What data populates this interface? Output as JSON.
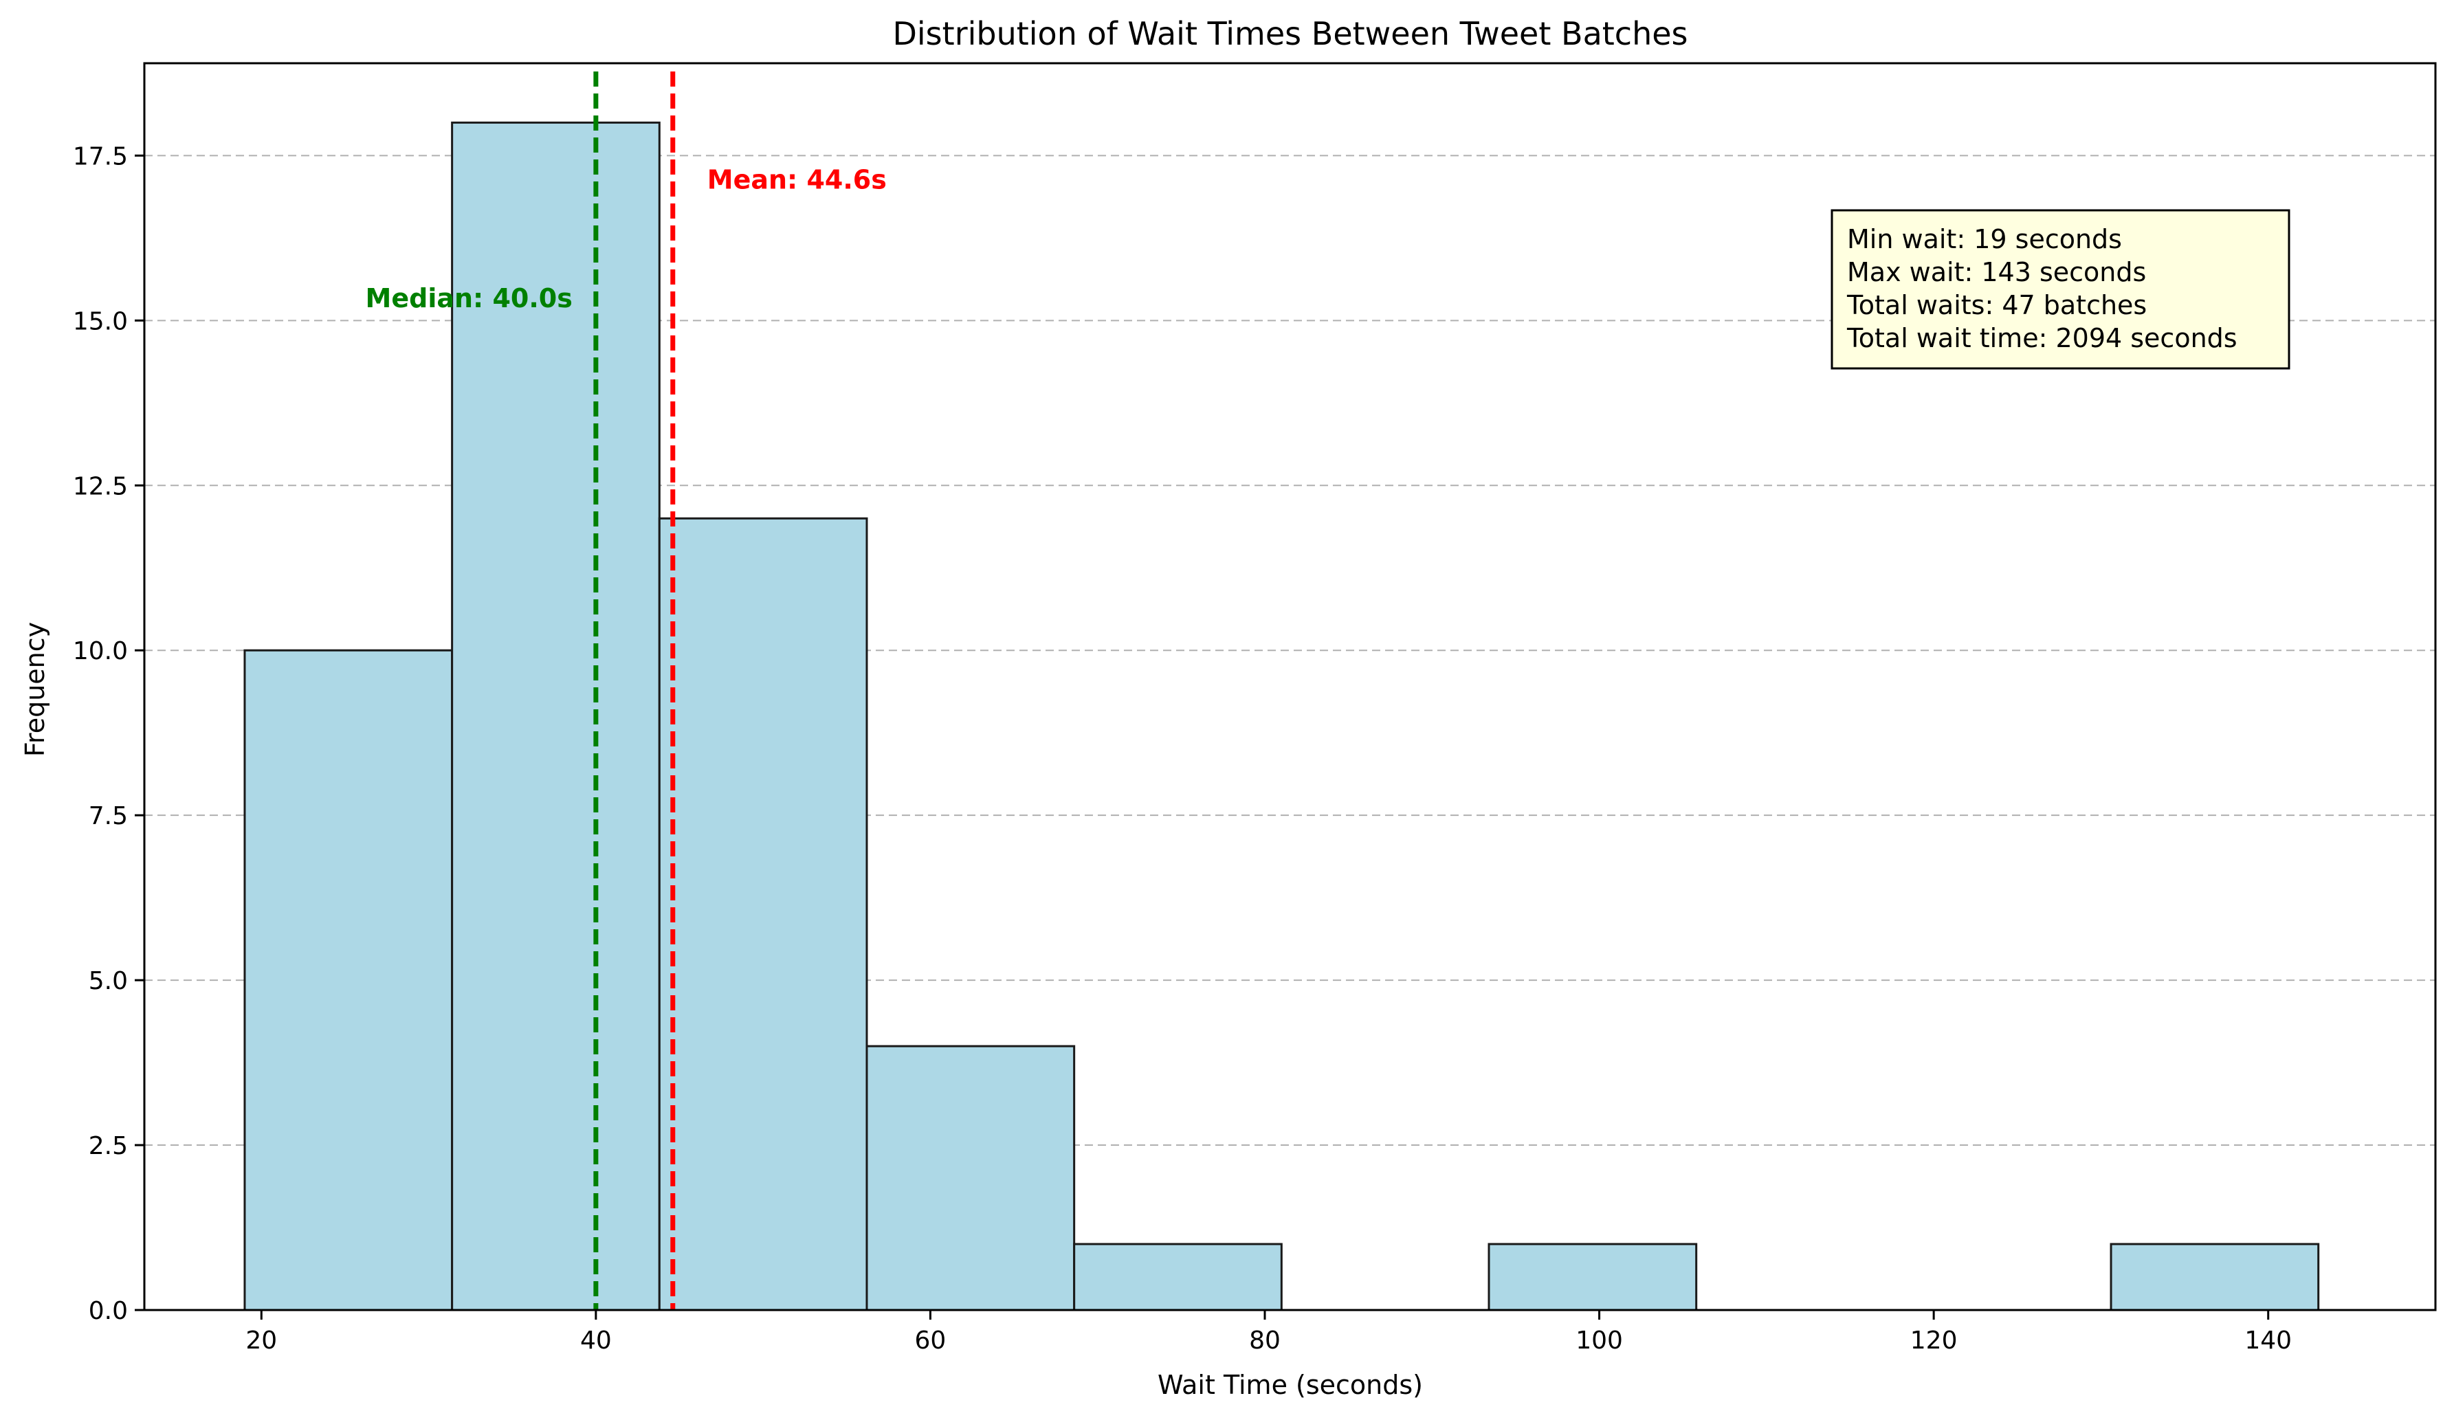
{
  "chart_data": {
    "type": "bar",
    "title": "Distribution of Wait Times Between Tweet Batches",
    "xlabel": "Wait Time (seconds)",
    "ylabel": "Frequency",
    "xlim": [
      13,
      150
    ],
    "ylim": [
      0,
      18.9
    ],
    "x_ticks": [
      20,
      40,
      60,
      80,
      100,
      120,
      140
    ],
    "y_ticks": [
      0,
      2.5,
      5,
      7.5,
      10,
      12.5,
      15,
      17.5
    ],
    "grid": "y-dashed",
    "bins": [
      {
        "start": 19.0,
        "end": 31.4,
        "count": 10
      },
      {
        "start": 31.4,
        "end": 43.8,
        "count": 18
      },
      {
        "start": 43.8,
        "end": 56.2,
        "count": 12
      },
      {
        "start": 56.2,
        "end": 68.6,
        "count": 4
      },
      {
        "start": 68.6,
        "end": 81.0,
        "count": 1
      },
      {
        "start": 81.0,
        "end": 93.4,
        "count": 0
      },
      {
        "start": 93.4,
        "end": 105.8,
        "count": 1
      },
      {
        "start": 105.8,
        "end": 118.2,
        "count": 0
      },
      {
        "start": 118.2,
        "end": 130.6,
        "count": 0
      },
      {
        "start": 130.6,
        "end": 143.0,
        "count": 1
      }
    ],
    "reference_lines": [
      {
        "label": "Median: 40.0s",
        "value": 40.0,
        "color": "#008000",
        "label_y": 15.2,
        "label_anchor": "end"
      },
      {
        "label": "Mean: 44.6s",
        "value": 44.6,
        "color": "#ff0000",
        "label_y": 17.0,
        "label_anchor": "start"
      }
    ],
    "stats_box": [
      "Min wait: 19 seconds",
      "Max wait: 143 seconds",
      "Total waits: 47 batches",
      "Total wait time: 2094 seconds"
    ],
    "colors": {
      "bar_fill": "#add8e6",
      "bar_edge": "#1a1a1a",
      "grid": "#b0b0b0",
      "stats_box_fill": "#ffffe0"
    }
  }
}
